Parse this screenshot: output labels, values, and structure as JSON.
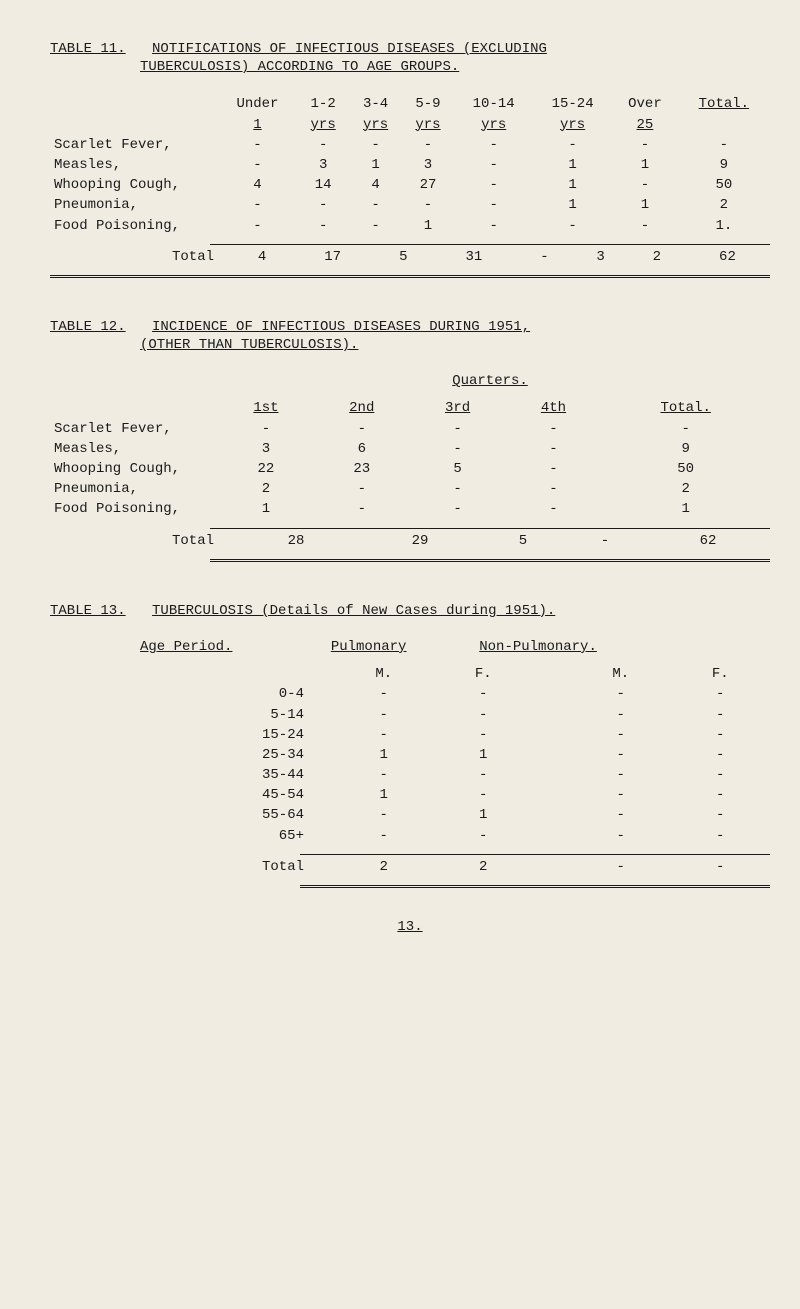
{
  "table11": {
    "number": "TABLE 11.",
    "title_line1": "NOTIFICATIONS OF INFECTIOUS DISEASES (EXCLUDING",
    "title_line2": "TUBERCULOSIS) ACCORDING TO AGE GROUPS.",
    "headers_top": [
      "Under",
      "1-2",
      "3-4",
      "5-9",
      "10-14",
      "15-24",
      "Over",
      "Total."
    ],
    "headers_bot": [
      "1",
      "yrs",
      "yrs",
      "yrs",
      "yrs",
      "yrs",
      "25",
      ""
    ],
    "rows": [
      {
        "label": "Scarlet Fever,",
        "cells": [
          "-",
          "-",
          "-",
          "-",
          "-",
          "-",
          "-",
          "-"
        ]
      },
      {
        "label": "Measles,",
        "cells": [
          "-",
          "3",
          "1",
          "3",
          "-",
          "1",
          "1",
          "9"
        ]
      },
      {
        "label": "Whooping Cough,",
        "cells": [
          "4",
          "14",
          "4",
          "27",
          "-",
          "1",
          "-",
          "50"
        ]
      },
      {
        "label": "Pneumonia,",
        "cells": [
          "-",
          "-",
          "-",
          "-",
          "-",
          "1",
          "1",
          "2"
        ]
      },
      {
        "label": "Food Poisoning,",
        "cells": [
          "-",
          "-",
          "-",
          "1",
          "-",
          "-",
          "-",
          "1."
        ]
      }
    ],
    "total_label": "Total",
    "total_cells": [
      "4",
      "17",
      "5",
      "31",
      "-",
      "3",
      "2",
      "62"
    ]
  },
  "table12": {
    "number": "TABLE 12.",
    "title_line1": "INCIDENCE OF INFECTIOUS DISEASES DURING 1951,",
    "title_line2": "(OTHER THAN TUBERCULOSIS).",
    "quarters_caption": "Quarters.",
    "headers": [
      "1st",
      "2nd",
      "3rd",
      "4th",
      "Total."
    ],
    "rows": [
      {
        "label": "Scarlet Fever,",
        "cells": [
          "-",
          "-",
          "-",
          "-",
          "-"
        ]
      },
      {
        "label": "Measles,",
        "cells": [
          "3",
          "6",
          "-",
          "-",
          "9"
        ]
      },
      {
        "label": "Whooping Cough,",
        "cells": [
          "22",
          "23",
          "5",
          "-",
          "50"
        ]
      },
      {
        "label": "Pneumonia,",
        "cells": [
          "2",
          "-",
          "-",
          "-",
          "2"
        ]
      },
      {
        "label": "Food Poisoning,",
        "cells": [
          "1",
          "-",
          "-",
          "-",
          "1"
        ]
      }
    ],
    "total_label": "Total",
    "total_cells": [
      "28",
      "29",
      "5",
      "-",
      "62"
    ]
  },
  "table13": {
    "number": "TABLE 13.",
    "title": "TUBERCULOSIS   (Details of New Cases during 1951).",
    "age_period_label": "Age Period.",
    "pulmonary_label": "Pulmonary",
    "nonpulmonary_label": "Non-Pulmonary.",
    "m_label": "M.",
    "f_label": "F.",
    "rows": [
      {
        "label": "0-4",
        "cells": [
          "-",
          "-",
          "-",
          "-"
        ]
      },
      {
        "label": "5-14",
        "cells": [
          "-",
          "-",
          "-",
          "-"
        ]
      },
      {
        "label": "15-24",
        "cells": [
          "-",
          "-",
          "-",
          "-"
        ]
      },
      {
        "label": "25-34",
        "cells": [
          "1",
          "1",
          "-",
          "-"
        ]
      },
      {
        "label": "35-44",
        "cells": [
          "-",
          "-",
          "-",
          "-"
        ]
      },
      {
        "label": "45-54",
        "cells": [
          "1",
          "-",
          "-",
          "-"
        ]
      },
      {
        "label": "55-64",
        "cells": [
          "-",
          "1",
          "-",
          "-"
        ]
      },
      {
        "label": "65+",
        "cells": [
          "-",
          "-",
          "-",
          "-"
        ]
      }
    ],
    "total_label": "Total",
    "total_cells": [
      "2",
      "2",
      "-",
      "-"
    ]
  },
  "page_number": "13."
}
